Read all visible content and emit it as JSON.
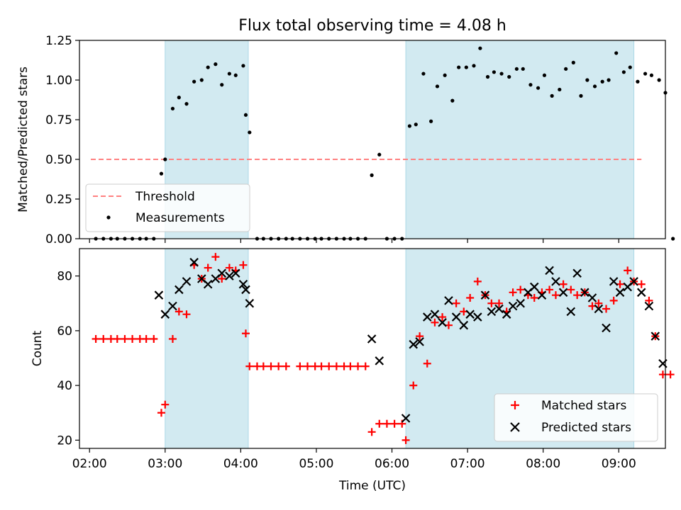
{
  "chart_data": [
    {
      "type": "scatter",
      "title": "Flux total observing time = 4.08 h",
      "xlabel": "",
      "ylabel": "Matched/Predicted stars",
      "xlim": [
        "01:52",
        "09:37"
      ],
      "ylim": [
        0,
        1.25
      ],
      "yticks": [
        "0.00",
        "0.25",
        "0.50",
        "0.75",
        "1.00",
        "1.25"
      ],
      "shaded_intervals": [
        [
          "03:00",
          "04:06"
        ],
        [
          "06:11",
          "09:12"
        ]
      ],
      "shade_color": "#add8e6",
      "threshold": {
        "value": 0.5,
        "x_start": "02:01",
        "x_end": "09:18",
        "color": "#ff8080"
      },
      "legend": {
        "location": "lower-left",
        "entries": [
          "Threshold",
          "Measurements"
        ]
      },
      "series": [
        {
          "name": "Measurements",
          "marker": "dot",
          "color": "#000000",
          "points": [
            [
              "02:05",
              0
            ],
            [
              "02:11",
              0
            ],
            [
              "02:17",
              0
            ],
            [
              "02:22",
              0
            ],
            [
              "02:28",
              0
            ],
            [
              "02:34",
              0
            ],
            [
              "02:40",
              0
            ],
            [
              "02:45",
              0
            ],
            [
              "02:51",
              0
            ],
            [
              "02:57",
              0.41
            ],
            [
              "03:00",
              0.5
            ],
            [
              "03:06",
              0.82
            ],
            [
              "03:11",
              0.89
            ],
            [
              "03:17",
              0.85
            ],
            [
              "03:23",
              0.99
            ],
            [
              "03:29",
              1.0
            ],
            [
              "03:34",
              1.08
            ],
            [
              "03:40",
              1.1
            ],
            [
              "03:45",
              0.97
            ],
            [
              "03:51",
              1.04
            ],
            [
              "03:56",
              1.03
            ],
            [
              "04:02",
              1.09
            ],
            [
              "04:04",
              0.78
            ],
            [
              "04:07",
              0.67
            ],
            [
              "04:13",
              0
            ],
            [
              "04:18",
              0
            ],
            [
              "04:24",
              0
            ],
            [
              "04:30",
              0
            ],
            [
              "04:36",
              0
            ],
            [
              "04:41",
              0
            ],
            [
              "04:47",
              0
            ],
            [
              "04:53",
              0
            ],
            [
              "04:59",
              0
            ],
            [
              "05:04",
              0
            ],
            [
              "05:10",
              0
            ],
            [
              "05:16",
              0
            ],
            [
              "05:22",
              0
            ],
            [
              "05:27",
              0
            ],
            [
              "05:33",
              0
            ],
            [
              "05:39",
              0
            ],
            [
              "05:44",
              0.4
            ],
            [
              "05:50",
              0.53
            ],
            [
              "05:56",
              0
            ],
            [
              "06:02",
              0
            ],
            [
              "06:08",
              0
            ],
            [
              "06:14",
              0.71
            ],
            [
              "06:19",
              0.72
            ],
            [
              "06:25",
              1.04
            ],
            [
              "06:31",
              0.74
            ],
            [
              "06:36",
              0.96
            ],
            [
              "06:42",
              1.03
            ],
            [
              "06:48",
              0.87
            ],
            [
              "06:53",
              1.08
            ],
            [
              "06:59",
              1.08
            ],
            [
              "07:05",
              1.09
            ],
            [
              "07:10",
              1.2
            ],
            [
              "07:16",
              1.02
            ],
            [
              "07:21",
              1.05
            ],
            [
              "07:27",
              1.04
            ],
            [
              "07:33",
              1.02
            ],
            [
              "07:39",
              1.07
            ],
            [
              "07:44",
              1.07
            ],
            [
              "07:50",
              0.97
            ],
            [
              "07:56",
              0.95
            ],
            [
              "08:01",
              1.03
            ],
            [
              "08:07",
              0.9
            ],
            [
              "08:13",
              0.94
            ],
            [
              "08:18",
              1.07
            ],
            [
              "08:24",
              1.11
            ],
            [
              "08:30",
              0.9
            ],
            [
              "08:35",
              1.0
            ],
            [
              "08:41",
              0.96
            ],
            [
              "08:47",
              0.99
            ],
            [
              "08:52",
              1.0
            ],
            [
              "08:58",
              1.17
            ],
            [
              "09:04",
              1.05
            ],
            [
              "09:09",
              1.08
            ],
            [
              "09:15",
              0.99
            ],
            [
              "09:21",
              1.04
            ],
            [
              "09:26",
              1.03
            ],
            [
              "09:32",
              1.0
            ],
            [
              "09:37",
              0.92
            ],
            [
              "09:43",
              0
            ]
          ]
        }
      ]
    },
    {
      "type": "scatter",
      "title": "",
      "xlabel": "Time (UTC)",
      "ylabel": "Count",
      "xlim": [
        "01:52",
        "09:37"
      ],
      "ylim": [
        17,
        90
      ],
      "xticks": [
        "02:00",
        "03:00",
        "04:00",
        "05:00",
        "06:00",
        "07:00",
        "08:00",
        "09:00"
      ],
      "yticks": [
        "20",
        "40",
        "60",
        "80"
      ],
      "shaded_intervals": [
        [
          "03:00",
          "04:06"
        ],
        [
          "06:11",
          "09:12"
        ]
      ],
      "shade_color": "#add8e6",
      "legend": {
        "location": "lower-right",
        "entries": [
          "Matched stars",
          "Predicted stars"
        ]
      },
      "series": [
        {
          "name": "Matched stars",
          "marker": "plus",
          "color": "#ff0000",
          "points": [
            [
              "02:05",
              57
            ],
            [
              "02:11",
              57
            ],
            [
              "02:17",
              57
            ],
            [
              "02:22",
              57
            ],
            [
              "02:28",
              57
            ],
            [
              "02:34",
              57
            ],
            [
              "02:40",
              57
            ],
            [
              "02:45",
              57
            ],
            [
              "02:51",
              57
            ],
            [
              "02:57",
              30
            ],
            [
              "03:00",
              33
            ],
            [
              "03:06",
              57
            ],
            [
              "03:11",
              67
            ],
            [
              "03:17",
              66
            ],
            [
              "03:23",
              84
            ],
            [
              "03:29",
              79
            ],
            [
              "03:34",
              83
            ],
            [
              "03:40",
              87
            ],
            [
              "03:45",
              79
            ],
            [
              "03:51",
              83
            ],
            [
              "03:56",
              82
            ],
            [
              "04:02",
              84
            ],
            [
              "04:04",
              59
            ],
            [
              "04:07",
              47
            ],
            [
              "04:13",
              47
            ],
            [
              "04:18",
              47
            ],
            [
              "04:24",
              47
            ],
            [
              "04:30",
              47
            ],
            [
              "04:36",
              47
            ],
            [
              "04:47",
              47
            ],
            [
              "04:53",
              47
            ],
            [
              "04:59",
              47
            ],
            [
              "05:04",
              47
            ],
            [
              "05:10",
              47
            ],
            [
              "05:16",
              47
            ],
            [
              "05:22",
              47
            ],
            [
              "05:27",
              47
            ],
            [
              "05:33",
              47
            ],
            [
              "05:39",
              47
            ],
            [
              "05:44",
              23
            ],
            [
              "05:50",
              26
            ],
            [
              "05:56",
              26
            ],
            [
              "06:02",
              26
            ],
            [
              "06:08",
              26
            ],
            [
              "06:11",
              20
            ],
            [
              "06:17",
              40
            ],
            [
              "06:22",
              58
            ],
            [
              "06:28",
              48
            ],
            [
              "06:34",
              63
            ],
            [
              "06:40",
              65
            ],
            [
              "06:45",
              62
            ],
            [
              "06:51",
              70
            ],
            [
              "06:57",
              67
            ],
            [
              "07:02",
              72
            ],
            [
              "07:08",
              78
            ],
            [
              "07:14",
              73
            ],
            [
              "07:19",
              70
            ],
            [
              "07:25",
              70
            ],
            [
              "07:31",
              67
            ],
            [
              "07:36",
              74
            ],
            [
              "07:42",
              75
            ],
            [
              "07:48",
              73
            ],
            [
              "07:53",
              72
            ],
            [
              "07:59",
              74
            ],
            [
              "08:05",
              75
            ],
            [
              "08:10",
              73
            ],
            [
              "08:16",
              77
            ],
            [
              "08:22",
              75
            ],
            [
              "08:27",
              73
            ],
            [
              "08:33",
              74
            ],
            [
              "08:39",
              69
            ],
            [
              "08:44",
              70
            ],
            [
              "08:50",
              68
            ],
            [
              "08:56",
              71
            ],
            [
              "09:01",
              77
            ],
            [
              "09:07",
              82
            ],
            [
              "09:12",
              78
            ],
            [
              "09:18",
              77
            ],
            [
              "09:24",
              71
            ],
            [
              "09:29",
              58
            ],
            [
              "09:35",
              44
            ],
            [
              "09:41",
              44
            ]
          ]
        },
        {
          "name": "Predicted stars",
          "marker": "x",
          "color": "#000000",
          "points": [
            [
              "02:55",
              73
            ],
            [
              "03:00",
              66
            ],
            [
              "03:06",
              69
            ],
            [
              "03:11",
              75
            ],
            [
              "03:17",
              78
            ],
            [
              "03:23",
              85
            ],
            [
              "03:29",
              79
            ],
            [
              "03:34",
              77
            ],
            [
              "03:40",
              79
            ],
            [
              "03:45",
              81
            ],
            [
              "03:51",
              80
            ],
            [
              "03:56",
              81
            ],
            [
              "04:02",
              77
            ],
            [
              "04:04",
              75
            ],
            [
              "04:07",
              70
            ],
            [
              "05:44",
              57
            ],
            [
              "05:50",
              49
            ],
            [
              "06:11",
              28
            ],
            [
              "06:17",
              55
            ],
            [
              "06:22",
              56
            ],
            [
              "06:28",
              65
            ],
            [
              "06:34",
              66
            ],
            [
              "06:40",
              63
            ],
            [
              "06:45",
              71
            ],
            [
              "06:51",
              65
            ],
            [
              "06:57",
              62
            ],
            [
              "07:02",
              66
            ],
            [
              "07:08",
              65
            ],
            [
              "07:14",
              73
            ],
            [
              "07:19",
              67
            ],
            [
              "07:25",
              68
            ],
            [
              "07:31",
              66
            ],
            [
              "07:36",
              69
            ],
            [
              "07:42",
              70
            ],
            [
              "07:48",
              74
            ],
            [
              "07:53",
              76
            ],
            [
              "07:59",
              73
            ],
            [
              "08:05",
              82
            ],
            [
              "08:10",
              78
            ],
            [
              "08:16",
              74
            ],
            [
              "08:22",
              67
            ],
            [
              "08:27",
              81
            ],
            [
              "08:33",
              74
            ],
            [
              "08:39",
              72
            ],
            [
              "08:44",
              68
            ],
            [
              "08:50",
              61
            ],
            [
              "08:56",
              78
            ],
            [
              "09:01",
              74
            ],
            [
              "09:07",
              76
            ],
            [
              "09:12",
              78
            ],
            [
              "09:18",
              74
            ],
            [
              "09:24",
              69
            ],
            [
              "09:29",
              58
            ],
            [
              "09:35",
              48
            ]
          ]
        }
      ]
    }
  ]
}
